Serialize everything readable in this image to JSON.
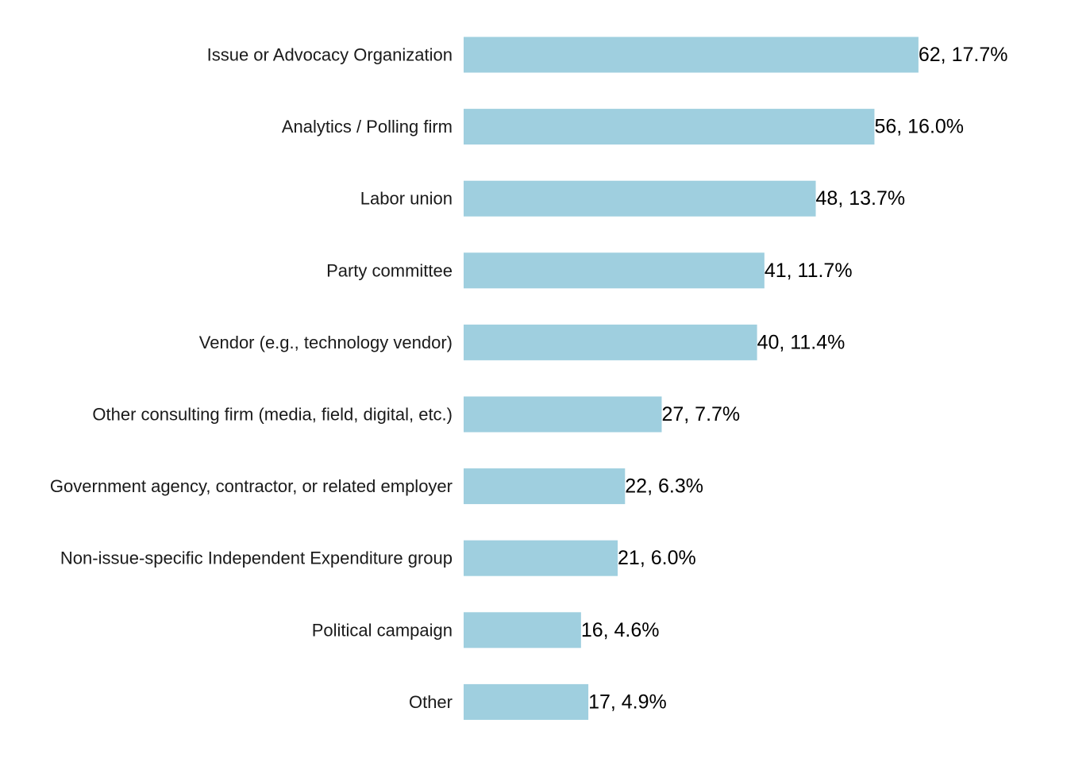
{
  "chart_data": {
    "type": "bar",
    "orientation": "horizontal",
    "title": "",
    "xlabel": "",
    "ylabel": "",
    "grid": false,
    "legend": "none",
    "bar_color": "#9fcfdf",
    "categories": [
      "Issue or Advocacy Organization",
      "Analytics / Polling firm",
      "Labor union",
      "Party committee",
      "Vendor (e.g., technology vendor)",
      "Other consulting firm (media, field, digital, etc.)",
      "Government agency, contractor, or related employer",
      "Non-issue-specific Independent Expenditure group",
      "Political campaign",
      "Other"
    ],
    "values": [
      62,
      56,
      48,
      41,
      40,
      27,
      22,
      21,
      16,
      17
    ],
    "labels": [
      "62, 17.7%",
      "56, 16.0%",
      "48, 13.7%",
      "41, 11.7%",
      "40, 11.4%",
      "27, 7.7%",
      "22, 6.3%",
      "21, 6.0%",
      "16, 4.6%",
      "17, 4.9%"
    ]
  }
}
